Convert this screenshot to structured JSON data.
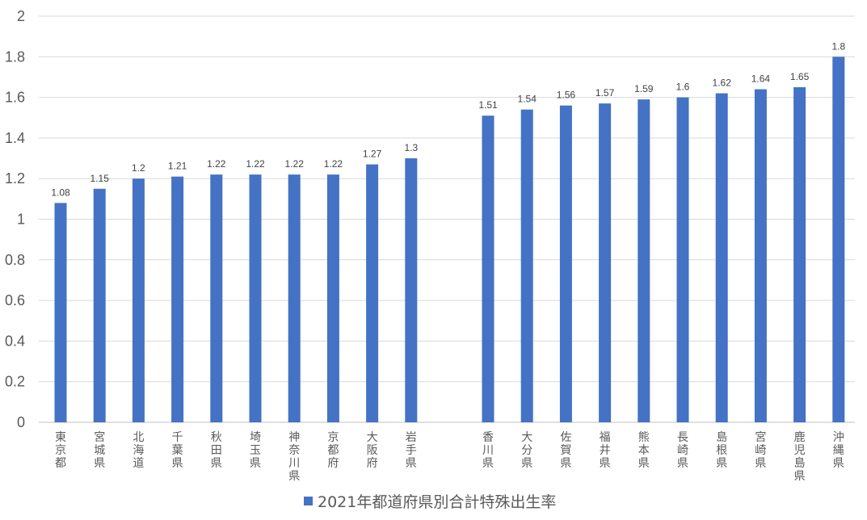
{
  "chart_data": {
    "type": "bar",
    "ylim": [
      0,
      2
    ],
    "yticks": [
      "0",
      "0.2",
      "0.4",
      "0.6",
      "0.8",
      "1",
      "1.2",
      "1.4",
      "1.6",
      "1.8",
      "2"
    ],
    "grid": true,
    "legend_position": "bottom",
    "bar_color": "#4472C4",
    "grid_color": "#d9d9d9",
    "series": [
      {
        "name": "2021年都道府県別合計特殊出生率",
        "groups": [
          {
            "categories": [
              "東京都",
              "宮城県",
              "北海道",
              "千葉県",
              "秋田県",
              "埼玉県",
              "神奈川県",
              "京都府",
              "大阪府",
              "岩手県"
            ],
            "values": [
              1.08,
              1.15,
              1.2,
              1.21,
              1.22,
              1.22,
              1.22,
              1.22,
              1.27,
              1.3
            ],
            "labels": [
              "1.08",
              "1.15",
              "1.2",
              "1.21",
              "1.22",
              "1.22",
              "1.22",
              "1.22",
              "1.27",
              "1.3"
            ]
          },
          {
            "categories": [
              "香川県",
              "大分県",
              "佐賀県",
              "福井県",
              "熊本県",
              "長崎県",
              "島根県",
              "宮崎県",
              "鹿児島県",
              "沖縄県"
            ],
            "values": [
              1.51,
              1.54,
              1.56,
              1.57,
              1.59,
              1.6,
              1.62,
              1.64,
              1.65,
              1.8
            ],
            "labels": [
              "1.51",
              "1.54",
              "1.56",
              "1.57",
              "1.59",
              "1.6",
              "1.62",
              "1.64",
              "1.65",
              "1.8"
            ]
          }
        ]
      }
    ]
  }
}
